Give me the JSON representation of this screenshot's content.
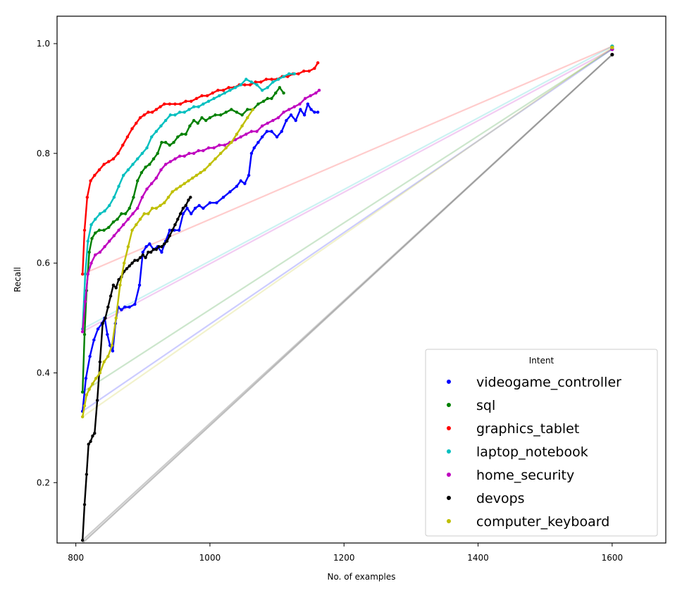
{
  "chart_data": {
    "type": "line",
    "xlabel": "No. of examples",
    "ylabel": "Recall",
    "xlim": [
      772,
      1680
    ],
    "ylim": [
      0.09,
      1.05
    ],
    "xticks": [
      800,
      1000,
      1200,
      1400,
      1600
    ],
    "yticks": [
      0.2,
      0.4,
      0.6,
      0.8,
      1.0
    ],
    "xtick_labels": [
      "800",
      "1000",
      "1200",
      "1400",
      "1600"
    ],
    "ytick_labels": [
      "0.2",
      "0.4",
      "0.6",
      "0.8",
      "1.0"
    ],
    "grid": false,
    "legend": {
      "title": "Intent",
      "placement": "lower-right"
    },
    "baseline": {
      "color": "#bfbfbf",
      "x": [
        810,
        1600
      ],
      "y": [
        0.09,
        0.98
      ]
    },
    "series": [
      {
        "name": "videogame_controller",
        "color": "#0000ff",
        "x": [
          810,
          815,
          821,
          827,
          833,
          839,
          843,
          847,
          851,
          855,
          859,
          863,
          868,
          873,
          880,
          888,
          895,
          900,
          905,
          910,
          916,
          922,
          928,
          934,
          940,
          947,
          954,
          960,
          966,
          972,
          978,
          984,
          990,
          1000,
          1010,
          1020,
          1030,
          1040,
          1046,
          1052,
          1058,
          1062,
          1066,
          1072,
          1078,
          1085,
          1092,
          1100,
          1107,
          1114,
          1121,
          1128,
          1135,
          1141,
          1146,
          1151,
          1156,
          1161
        ],
        "y": [
          0.33,
          0.39,
          0.43,
          0.46,
          0.48,
          0.49,
          0.5,
          0.47,
          0.45,
          0.44,
          0.49,
          0.52,
          0.515,
          0.52,
          0.52,
          0.525,
          0.56,
          0.62,
          0.63,
          0.635,
          0.625,
          0.63,
          0.62,
          0.64,
          0.66,
          0.66,
          0.66,
          0.69,
          0.7,
          0.69,
          0.7,
          0.705,
          0.7,
          0.71,
          0.71,
          0.72,
          0.73,
          0.74,
          0.75,
          0.745,
          0.76,
          0.8,
          0.81,
          0.82,
          0.83,
          0.84,
          0.84,
          0.83,
          0.84,
          0.86,
          0.87,
          0.86,
          0.88,
          0.87,
          0.89,
          0.88,
          0.875,
          0.875
        ],
        "endpoint": {
          "x": 1600,
          "y": 0.99
        }
      },
      {
        "name": "sql",
        "color": "#008000",
        "x": [
          810,
          813,
          816,
          820,
          824,
          829,
          835,
          842,
          849,
          856,
          862,
          868,
          874,
          880,
          886,
          892,
          898,
          904,
          910,
          916,
          922,
          928,
          934,
          940,
          946,
          952,
          958,
          964,
          970,
          976,
          982,
          988,
          994,
          1000,
          1008,
          1016,
          1024,
          1032,
          1040,
          1048,
          1056,
          1064,
          1072,
          1080,
          1086,
          1092,
          1098,
          1104,
          1110
        ],
        "y": [
          0.365,
          0.47,
          0.55,
          0.62,
          0.645,
          0.655,
          0.66,
          0.66,
          0.665,
          0.675,
          0.68,
          0.69,
          0.69,
          0.7,
          0.72,
          0.75,
          0.765,
          0.775,
          0.78,
          0.79,
          0.8,
          0.82,
          0.82,
          0.815,
          0.82,
          0.83,
          0.835,
          0.835,
          0.85,
          0.86,
          0.855,
          0.865,
          0.86,
          0.865,
          0.87,
          0.87,
          0.875,
          0.88,
          0.875,
          0.87,
          0.88,
          0.88,
          0.89,
          0.895,
          0.9,
          0.9,
          0.91,
          0.92,
          0.91
        ],
        "endpoint": {
          "x": 1600,
          "y": 0.99
        }
      },
      {
        "name": "graphics_tablet",
        "color": "#ff0000",
        "x": [
          810,
          813,
          817,
          822,
          828,
          835,
          842,
          849,
          856,
          863,
          870,
          877,
          884,
          890,
          896,
          902,
          908,
          914,
          920,
          926,
          932,
          940,
          948,
          956,
          964,
          972,
          980,
          988,
          996,
          1004,
          1012,
          1020,
          1028,
          1036,
          1044,
          1052,
          1060,
          1068,
          1076,
          1084,
          1092,
          1100,
          1108,
          1116,
          1124,
          1132,
          1140,
          1148,
          1156,
          1161
        ],
        "y": [
          0.58,
          0.66,
          0.72,
          0.75,
          0.76,
          0.77,
          0.78,
          0.785,
          0.79,
          0.8,
          0.815,
          0.83,
          0.845,
          0.855,
          0.865,
          0.87,
          0.875,
          0.875,
          0.88,
          0.885,
          0.89,
          0.89,
          0.89,
          0.89,
          0.895,
          0.895,
          0.9,
          0.905,
          0.905,
          0.91,
          0.915,
          0.915,
          0.92,
          0.92,
          0.925,
          0.925,
          0.925,
          0.93,
          0.93,
          0.935,
          0.935,
          0.935,
          0.94,
          0.94,
          0.945,
          0.945,
          0.95,
          0.95,
          0.955,
          0.965
        ],
        "endpoint": {
          "x": 1600,
          "y": 0.995
        }
      },
      {
        "name": "laptop_notebook",
        "color": "#00bfbf",
        "x": [
          810,
          814,
          818,
          823,
          829,
          836,
          843,
          850,
          857,
          864,
          871,
          878,
          885,
          892,
          899,
          906,
          913,
          920,
          927,
          934,
          941,
          948,
          955,
          962,
          969,
          976,
          983,
          990,
          998,
          1006,
          1014,
          1022,
          1030,
          1038,
          1046,
          1054,
          1062,
          1070,
          1078,
          1086,
          1094,
          1102,
          1110,
          1118,
          1126
        ],
        "y": [
          0.48,
          0.58,
          0.64,
          0.67,
          0.68,
          0.69,
          0.695,
          0.705,
          0.72,
          0.74,
          0.76,
          0.77,
          0.78,
          0.79,
          0.8,
          0.81,
          0.83,
          0.84,
          0.85,
          0.86,
          0.87,
          0.87,
          0.875,
          0.875,
          0.88,
          0.885,
          0.885,
          0.89,
          0.895,
          0.9,
          0.905,
          0.91,
          0.915,
          0.92,
          0.925,
          0.935,
          0.93,
          0.925,
          0.915,
          0.92,
          0.93,
          0.935,
          0.94,
          0.945,
          0.945
        ],
        "endpoint": {
          "x": 1600,
          "y": 0.995
        }
      },
      {
        "name": "home_security",
        "color": "#bf00bf",
        "x": [
          810,
          814,
          818,
          823,
          829,
          836,
          843,
          850,
          857,
          864,
          871,
          878,
          885,
          892,
          899,
          906,
          913,
          920,
          927,
          934,
          941,
          948,
          955,
          962,
          969,
          976,
          983,
          990,
          998,
          1006,
          1014,
          1022,
          1030,
          1038,
          1046,
          1054,
          1062,
          1070,
          1078,
          1086,
          1094,
          1102,
          1110,
          1118,
          1126,
          1134,
          1142,
          1150,
          1158,
          1163
        ],
        "y": [
          0.475,
          0.53,
          0.58,
          0.6,
          0.615,
          0.62,
          0.63,
          0.64,
          0.65,
          0.66,
          0.67,
          0.68,
          0.69,
          0.7,
          0.72,
          0.735,
          0.745,
          0.755,
          0.77,
          0.78,
          0.785,
          0.79,
          0.795,
          0.795,
          0.8,
          0.8,
          0.805,
          0.805,
          0.81,
          0.81,
          0.815,
          0.815,
          0.82,
          0.825,
          0.83,
          0.835,
          0.84,
          0.84,
          0.85,
          0.855,
          0.86,
          0.865,
          0.875,
          0.88,
          0.885,
          0.89,
          0.9,
          0.905,
          0.91,
          0.915
        ],
        "endpoint": {
          "x": 1600,
          "y": 0.99
        }
      },
      {
        "name": "devops",
        "color": "#000000",
        "x": [
          810,
          813,
          816,
          819,
          822,
          825,
          828,
          832,
          836,
          840,
          844,
          848,
          852,
          856,
          860,
          864,
          868,
          872,
          876,
          880,
          884,
          888,
          892,
          896,
          900,
          904,
          908,
          912,
          916,
          920,
          924,
          928,
          932,
          936,
          940,
          944,
          948,
          952,
          956,
          960,
          964,
          968,
          971
        ],
        "y": [
          0.095,
          0.16,
          0.215,
          0.27,
          0.275,
          0.285,
          0.29,
          0.35,
          0.42,
          0.49,
          0.5,
          0.52,
          0.54,
          0.56,
          0.555,
          0.57,
          0.575,
          0.585,
          0.59,
          0.595,
          0.6,
          0.605,
          0.605,
          0.61,
          0.615,
          0.61,
          0.62,
          0.62,
          0.625,
          0.625,
          0.63,
          0.63,
          0.635,
          0.64,
          0.65,
          0.66,
          0.67,
          0.68,
          0.69,
          0.7,
          0.705,
          0.715,
          0.72
        ],
        "endpoint": {
          "x": 1600,
          "y": 0.98
        }
      },
      {
        "name": "computer_keyboard",
        "color": "#bfbf00",
        "x": [
          810,
          813,
          816,
          820,
          825,
          830,
          836,
          842,
          848,
          854,
          860,
          866,
          872,
          878,
          884,
          890,
          896,
          902,
          908,
          914,
          920,
          926,
          932,
          938,
          944,
          950,
          956,
          962,
          968,
          974,
          980,
          986,
          992,
          1000,
          1008,
          1016,
          1024,
          1032,
          1040,
          1048,
          1056,
          1064
        ],
        "y": [
          0.32,
          0.34,
          0.36,
          0.37,
          0.38,
          0.39,
          0.4,
          0.42,
          0.43,
          0.45,
          0.5,
          0.56,
          0.6,
          0.63,
          0.66,
          0.67,
          0.68,
          0.69,
          0.69,
          0.7,
          0.7,
          0.705,
          0.71,
          0.72,
          0.73,
          0.735,
          0.74,
          0.745,
          0.75,
          0.755,
          0.76,
          0.765,
          0.77,
          0.78,
          0.79,
          0.8,
          0.81,
          0.82,
          0.835,
          0.85,
          0.865,
          0.88
        ],
        "endpoint": {
          "x": 1600,
          "y": 0.993
        }
      }
    ]
  }
}
